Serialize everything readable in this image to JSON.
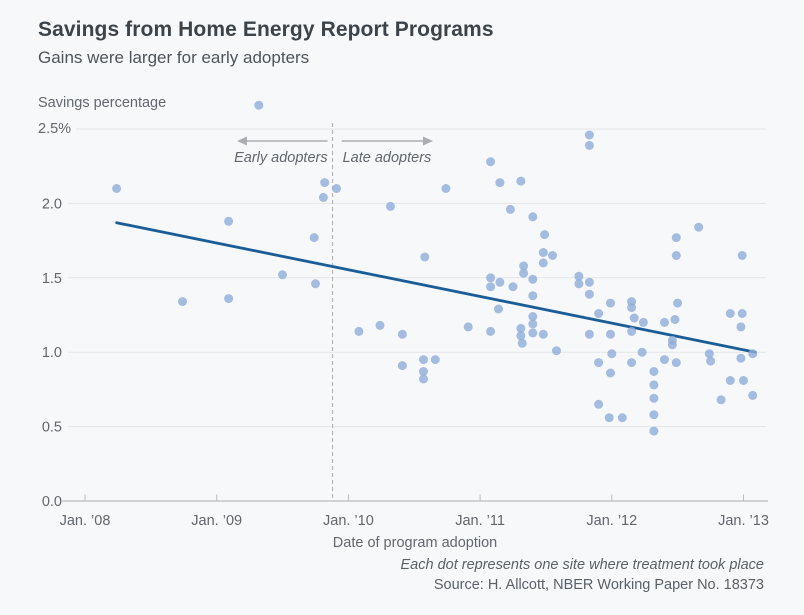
{
  "chart_data": {
    "type": "scatter",
    "title": "Savings from Home Energy Report Programs",
    "subtitle": "Gains were larger for early adopters",
    "xlabel": "Date of program adoption",
    "ylabel": "Savings percentage",
    "xlim": [
      2007.95,
      2013.2
    ],
    "ylim": [
      0.0,
      2.5
    ],
    "grid": true,
    "x_ticks": [
      {
        "year": 2008,
        "label": "Jan. ’08"
      },
      {
        "year": 2009,
        "label": "Jan. ’09"
      },
      {
        "year": 2010,
        "label": "Jan. ’10"
      },
      {
        "year": 2011,
        "label": "Jan. ’11"
      },
      {
        "year": 2012,
        "label": "Jan. ’12"
      },
      {
        "year": 2013,
        "label": "Jan. ’13"
      }
    ],
    "y_ticks": [
      {
        "value": 0.0,
        "label": "0.0"
      },
      {
        "value": 0.5,
        "label": "0.5"
      },
      {
        "value": 1.0,
        "label": "1.0"
      },
      {
        "value": 1.5,
        "label": "1.5"
      },
      {
        "value": 2.0,
        "label": "2.0"
      },
      {
        "value": 2.5,
        "label": "2.5%"
      }
    ],
    "divider": {
      "year": 2009.88,
      "left_label": "Early adopters",
      "right_label": "Late adopters"
    },
    "trend_line": {
      "x1": 2008.24,
      "y1": 1.87,
      "x2": 2013.09,
      "y2": 1.0
    },
    "points": [
      [
        2008.24,
        2.1
      ],
      [
        2008.74,
        1.34
      ],
      [
        2009.09,
        1.88
      ],
      [
        2009.09,
        1.36
      ],
      [
        2009.32,
        2.66
      ],
      [
        2009.5,
        1.52
      ],
      [
        2009.74,
        1.77
      ],
      [
        2009.75,
        1.46
      ],
      [
        2009.81,
        2.04
      ],
      [
        2009.82,
        2.14
      ],
      [
        2009.91,
        2.1
      ],
      [
        2010.08,
        1.14
      ],
      [
        2010.24,
        1.18
      ],
      [
        2010.32,
        1.98
      ],
      [
        2010.41,
        1.12
      ],
      [
        2010.41,
        0.91
      ],
      [
        2010.57,
        0.95
      ],
      [
        2010.66,
        0.95
      ],
      [
        2010.57,
        0.87
      ],
      [
        2010.57,
        0.82
      ],
      [
        2010.58,
        1.64
      ],
      [
        2010.74,
        2.1
      ],
      [
        2010.91,
        1.17
      ],
      [
        2011.08,
        2.28
      ],
      [
        2011.08,
        1.5
      ],
      [
        2011.08,
        1.44
      ],
      [
        2011.08,
        1.14
      ],
      [
        2011.15,
        2.14
      ],
      [
        2011.15,
        1.47
      ],
      [
        2011.14,
        1.29
      ],
      [
        2011.25,
        1.44
      ],
      [
        2011.23,
        1.96
      ],
      [
        2011.31,
        2.15
      ],
      [
        2011.33,
        1.58
      ],
      [
        2011.33,
        1.53
      ],
      [
        2011.4,
        1.49
      ],
      [
        2011.4,
        1.38
      ],
      [
        2011.31,
        1.16
      ],
      [
        2011.4,
        1.24
      ],
      [
        2011.4,
        1.19
      ],
      [
        2011.31,
        1.11
      ],
      [
        2011.4,
        1.13
      ],
      [
        2011.48,
        1.12
      ],
      [
        2011.32,
        1.06
      ],
      [
        2011.4,
        1.91
      ],
      [
        2011.49,
        1.79
      ],
      [
        2011.48,
        1.67
      ],
      [
        2011.48,
        1.6
      ],
      [
        2011.55,
        1.65
      ],
      [
        2011.58,
        1.01
      ],
      [
        2011.75,
        1.51
      ],
      [
        2011.75,
        1.46
      ],
      [
        2011.83,
        1.47
      ],
      [
        2011.83,
        1.39
      ],
      [
        2011.83,
        2.46
      ],
      [
        2011.83,
        2.39
      ],
      [
        2011.83,
        1.12
      ],
      [
        2011.9,
        1.26
      ],
      [
        2011.9,
        0.93
      ],
      [
        2011.9,
        0.65
      ],
      [
        2011.99,
        1.33
      ],
      [
        2011.99,
        1.12
      ],
      [
        2012.0,
        0.99
      ],
      [
        2011.99,
        0.86
      ],
      [
        2011.98,
        0.56
      ],
      [
        2012.08,
        0.56
      ],
      [
        2012.15,
        1.34
      ],
      [
        2012.15,
        1.3
      ],
      [
        2012.15,
        1.14
      ],
      [
        2012.15,
        0.93
      ],
      [
        2012.17,
        1.23
      ],
      [
        2012.24,
        1.2
      ],
      [
        2012.23,
        1.0
      ],
      [
        2012.32,
        0.87
      ],
      [
        2012.32,
        0.78
      ],
      [
        2012.32,
        0.69
      ],
      [
        2012.32,
        0.58
      ],
      [
        2012.32,
        0.47
      ],
      [
        2012.4,
        1.2
      ],
      [
        2012.48,
        1.22
      ],
      [
        2012.4,
        0.95
      ],
      [
        2012.49,
        0.93
      ],
      [
        2012.46,
        1.08
      ],
      [
        2012.46,
        1.05
      ],
      [
        2012.49,
        1.77
      ],
      [
        2012.49,
        1.65
      ],
      [
        2012.5,
        1.33
      ],
      [
        2012.66,
        1.84
      ],
      [
        2012.74,
        0.99
      ],
      [
        2012.75,
        0.94
      ],
      [
        2012.83,
        0.68
      ],
      [
        2012.9,
        1.26
      ],
      [
        2012.9,
        0.81
      ],
      [
        2012.99,
        1.26
      ],
      [
        2012.98,
        1.17
      ],
      [
        2012.98,
        0.96
      ],
      [
        2013.0,
        0.81
      ],
      [
        2012.99,
        1.65
      ],
      [
        2013.07,
        0.99
      ],
      [
        2013.07,
        0.71
      ]
    ],
    "colors": {
      "dot": "#8eadda",
      "dot_alpha": 0.8,
      "trend": "#1b5e97",
      "background": "#f7f8fa",
      "gridline": "#e3e6e9",
      "axis": "#b9bdc1",
      "divider": "#aaaeb2",
      "annotation": "#83878b"
    }
  },
  "footer": {
    "note": "Each dot represents one site where treatment took place",
    "source": "Source: H. Allcott, NBER Working Paper No. 18373"
  }
}
